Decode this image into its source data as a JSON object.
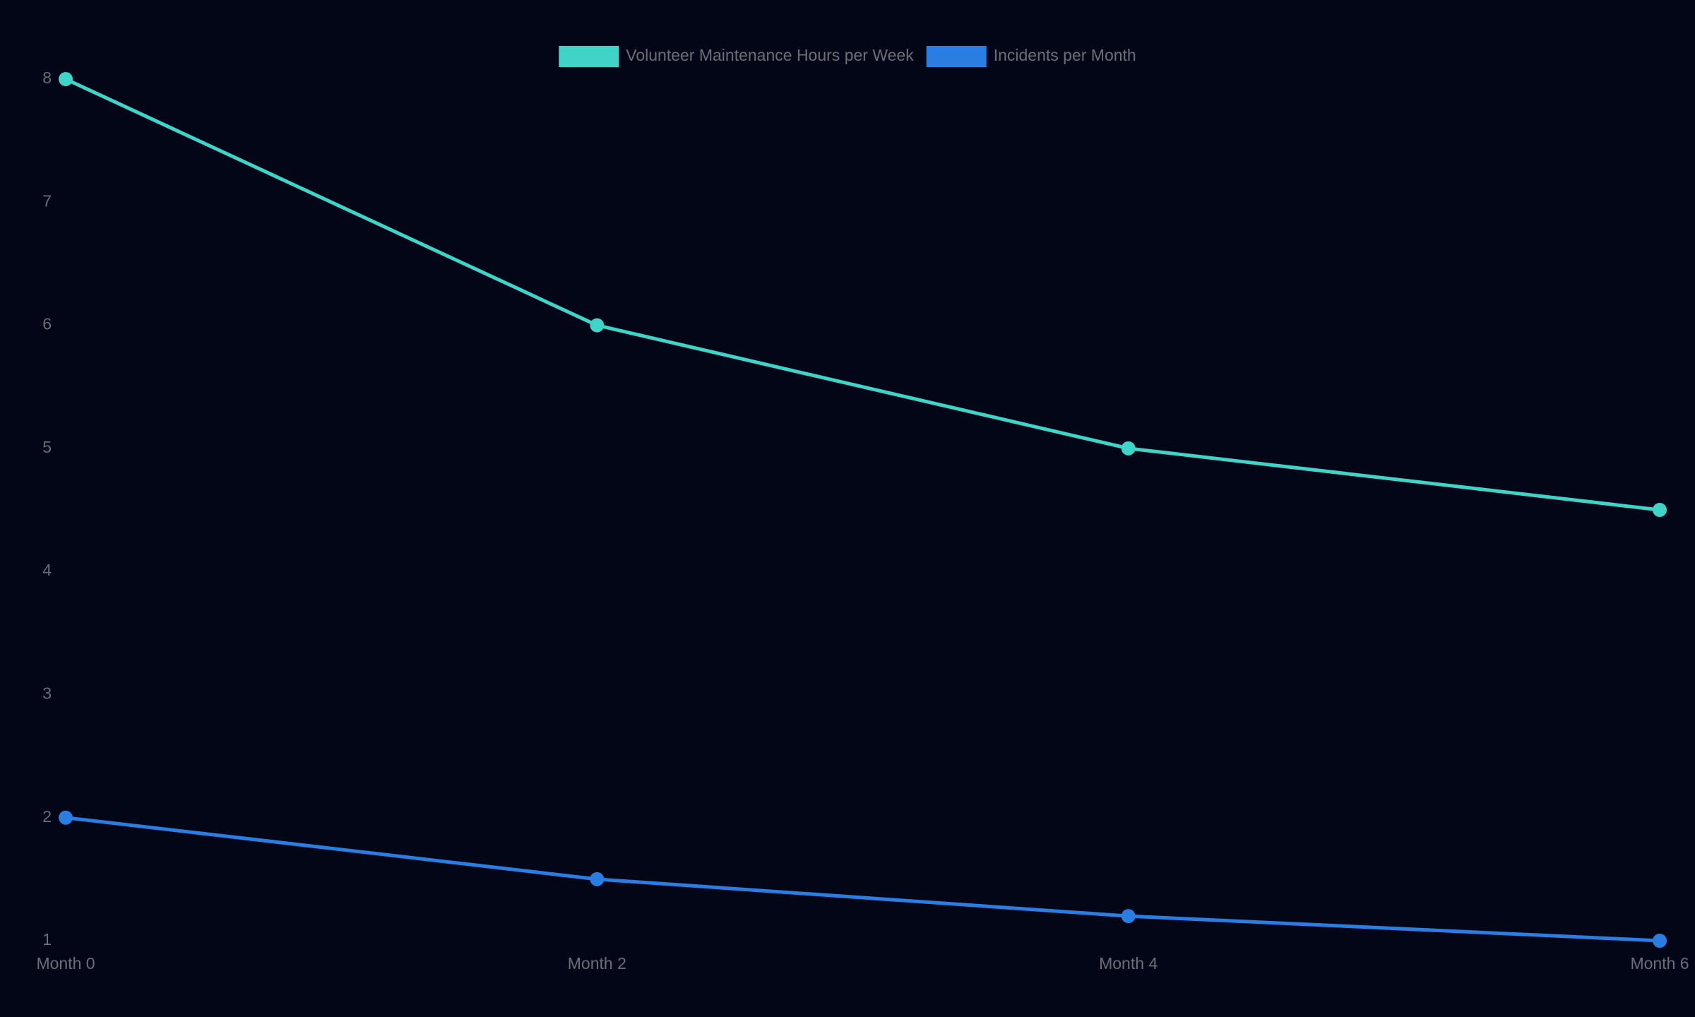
{
  "chart_data": {
    "type": "line",
    "categories": [
      "Month 0",
      "Month 2",
      "Month 4",
      "Month 6"
    ],
    "series": [
      {
        "name": "Volunteer Maintenance Hours per Week",
        "color": "#40d3c8",
        "values": [
          8,
          6,
          5,
          4.5
        ]
      },
      {
        "name": "Incidents per Month",
        "color": "#2a7de1",
        "values": [
          2,
          1.5,
          1.2,
          1
        ]
      }
    ],
    "ylim": [
      1,
      8
    ],
    "yticks": [
      1,
      2,
      3,
      4,
      5,
      6,
      7,
      8
    ],
    "grid": false,
    "legend": "top"
  }
}
